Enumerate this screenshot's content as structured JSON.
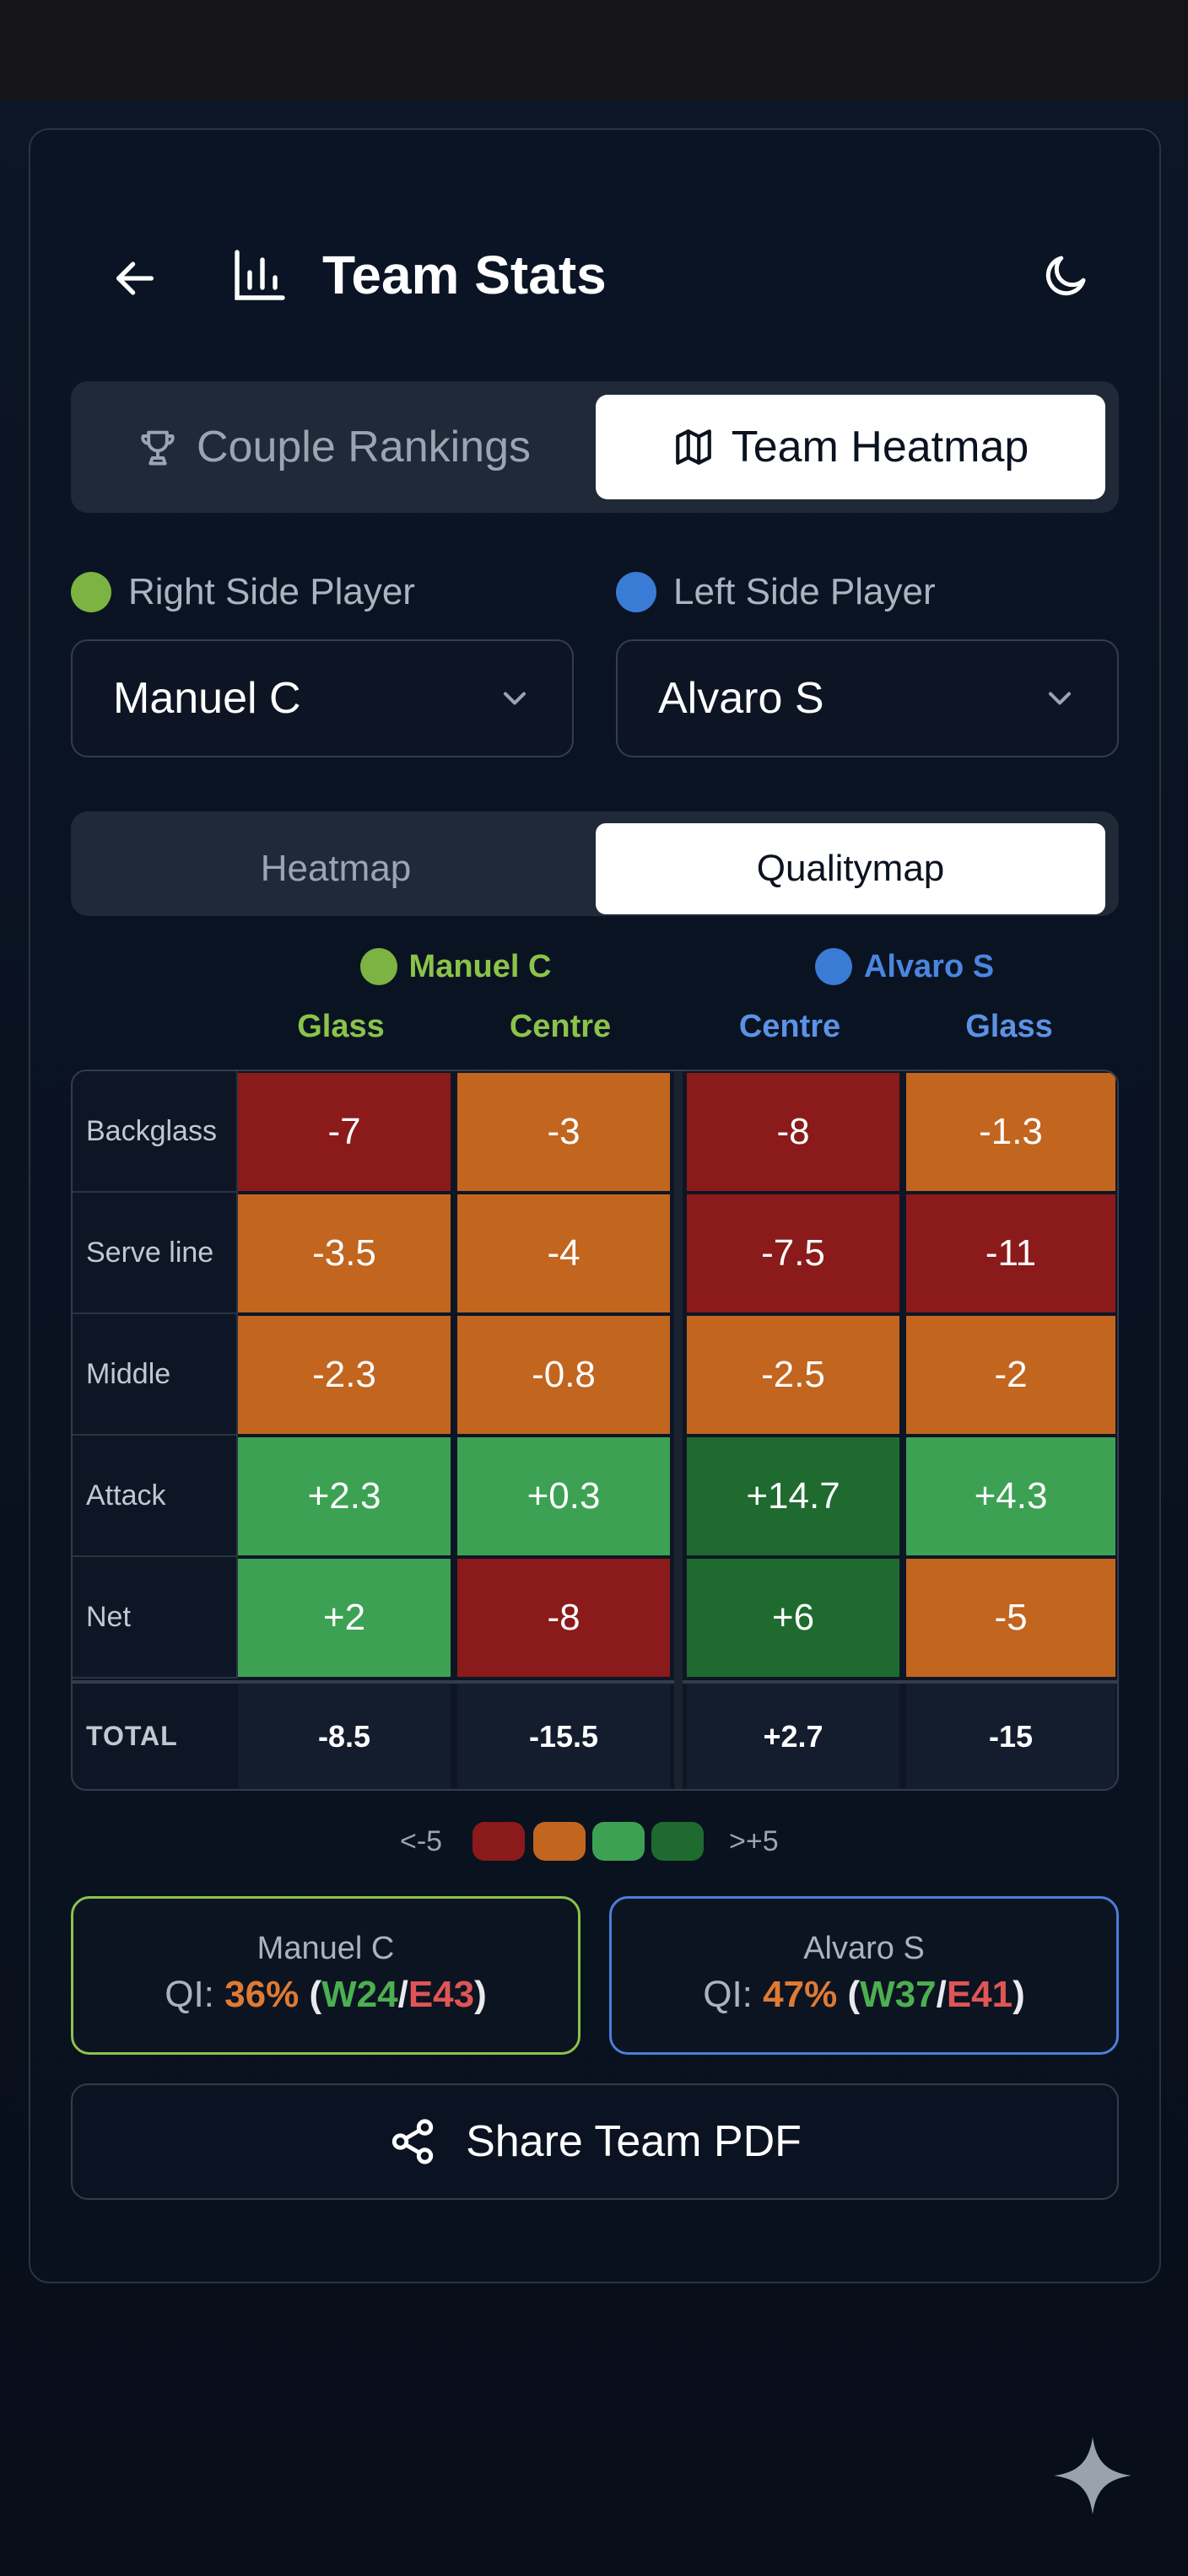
{
  "header": {
    "title": "Team Stats",
    "back_icon": "arrow-left-icon",
    "chart_icon": "bar-chart-icon",
    "theme_icon": "moon-icon"
  },
  "main_tabs": [
    {
      "label": "Couple Rankings",
      "icon": "trophy-icon",
      "active": false
    },
    {
      "label": "Team Heatmap",
      "icon": "map-icon",
      "active": true
    }
  ],
  "players": {
    "right": {
      "label": "Right Side Player",
      "value": "Manuel C",
      "color": "#7cb342"
    },
    "left": {
      "label": "Left Side Player",
      "value": "Alvaro S",
      "color": "#3a7bd5"
    }
  },
  "view_tabs": [
    {
      "label": "Heatmap",
      "active": false
    },
    {
      "label": "Qualitymap",
      "active": true
    }
  ],
  "heatmap": {
    "player_heads": [
      {
        "name": "Manuel C",
        "color": "#7cb342"
      },
      {
        "name": "Alvaro S",
        "color": "#4a86e0"
      }
    ],
    "columns": [
      {
        "label": "Glass",
        "color": "#8bc34a"
      },
      {
        "label": "Centre",
        "color": "#8bc34a"
      },
      {
        "label": "Centre",
        "color": "#5b92e5"
      },
      {
        "label": "Glass",
        "color": "#5b92e5"
      }
    ],
    "rows": [
      {
        "label": "Backglass",
        "values": [
          "-7",
          "-3",
          "-8",
          "-1.3"
        ],
        "colors": [
          "#8b1a1a",
          "#c2651f",
          "#8b1a1a",
          "#c2651f"
        ]
      },
      {
        "label": "Serve line",
        "values": [
          "-3.5",
          "-4",
          "-7.5",
          "-11"
        ],
        "colors": [
          "#c2651f",
          "#c2651f",
          "#8b1a1a",
          "#8b1a1a"
        ]
      },
      {
        "label": "Middle",
        "values": [
          "-2.3",
          "-0.8",
          "-2.5",
          "-2"
        ],
        "colors": [
          "#c2651f",
          "#c2651f",
          "#c2651f",
          "#c2651f"
        ]
      },
      {
        "label": "Attack",
        "values": [
          "+2.3",
          "+0.3",
          "+14.7",
          "+4.3"
        ],
        "colors": [
          "#3da154",
          "#3da154",
          "#1f6b2f",
          "#3da154"
        ]
      },
      {
        "label": "Net",
        "values": [
          "+2",
          "-8",
          "+6",
          "-5"
        ],
        "colors": [
          "#3da154",
          "#8b1a1a",
          "#1f6b2f",
          "#c2651f"
        ]
      }
    ],
    "total": {
      "label": "TOTAL",
      "values": [
        "-8.5",
        "-15.5",
        "+2.7",
        "-15"
      ]
    }
  },
  "legend": {
    "low": "<-5",
    "high": ">+5",
    "colors": [
      "#8b1a1a",
      "#c2651f",
      "#3da154",
      "#1f6b2f"
    ]
  },
  "summary": [
    {
      "name": "Manuel C",
      "qi_label": "QI:",
      "qi": "36%",
      "w": "W24",
      "e": "E43",
      "border": "#8bc34a"
    },
    {
      "name": "Alvaro S",
      "qi_label": "QI:",
      "qi": "47%",
      "w": "W37",
      "e": "E41",
      "border": "#4a7fd8"
    }
  ],
  "share": {
    "label": "Share Team PDF",
    "icon": "share-icon"
  },
  "colors": {
    "qi": "#e07a33",
    "w": "#4caf50",
    "e": "#e05555"
  }
}
